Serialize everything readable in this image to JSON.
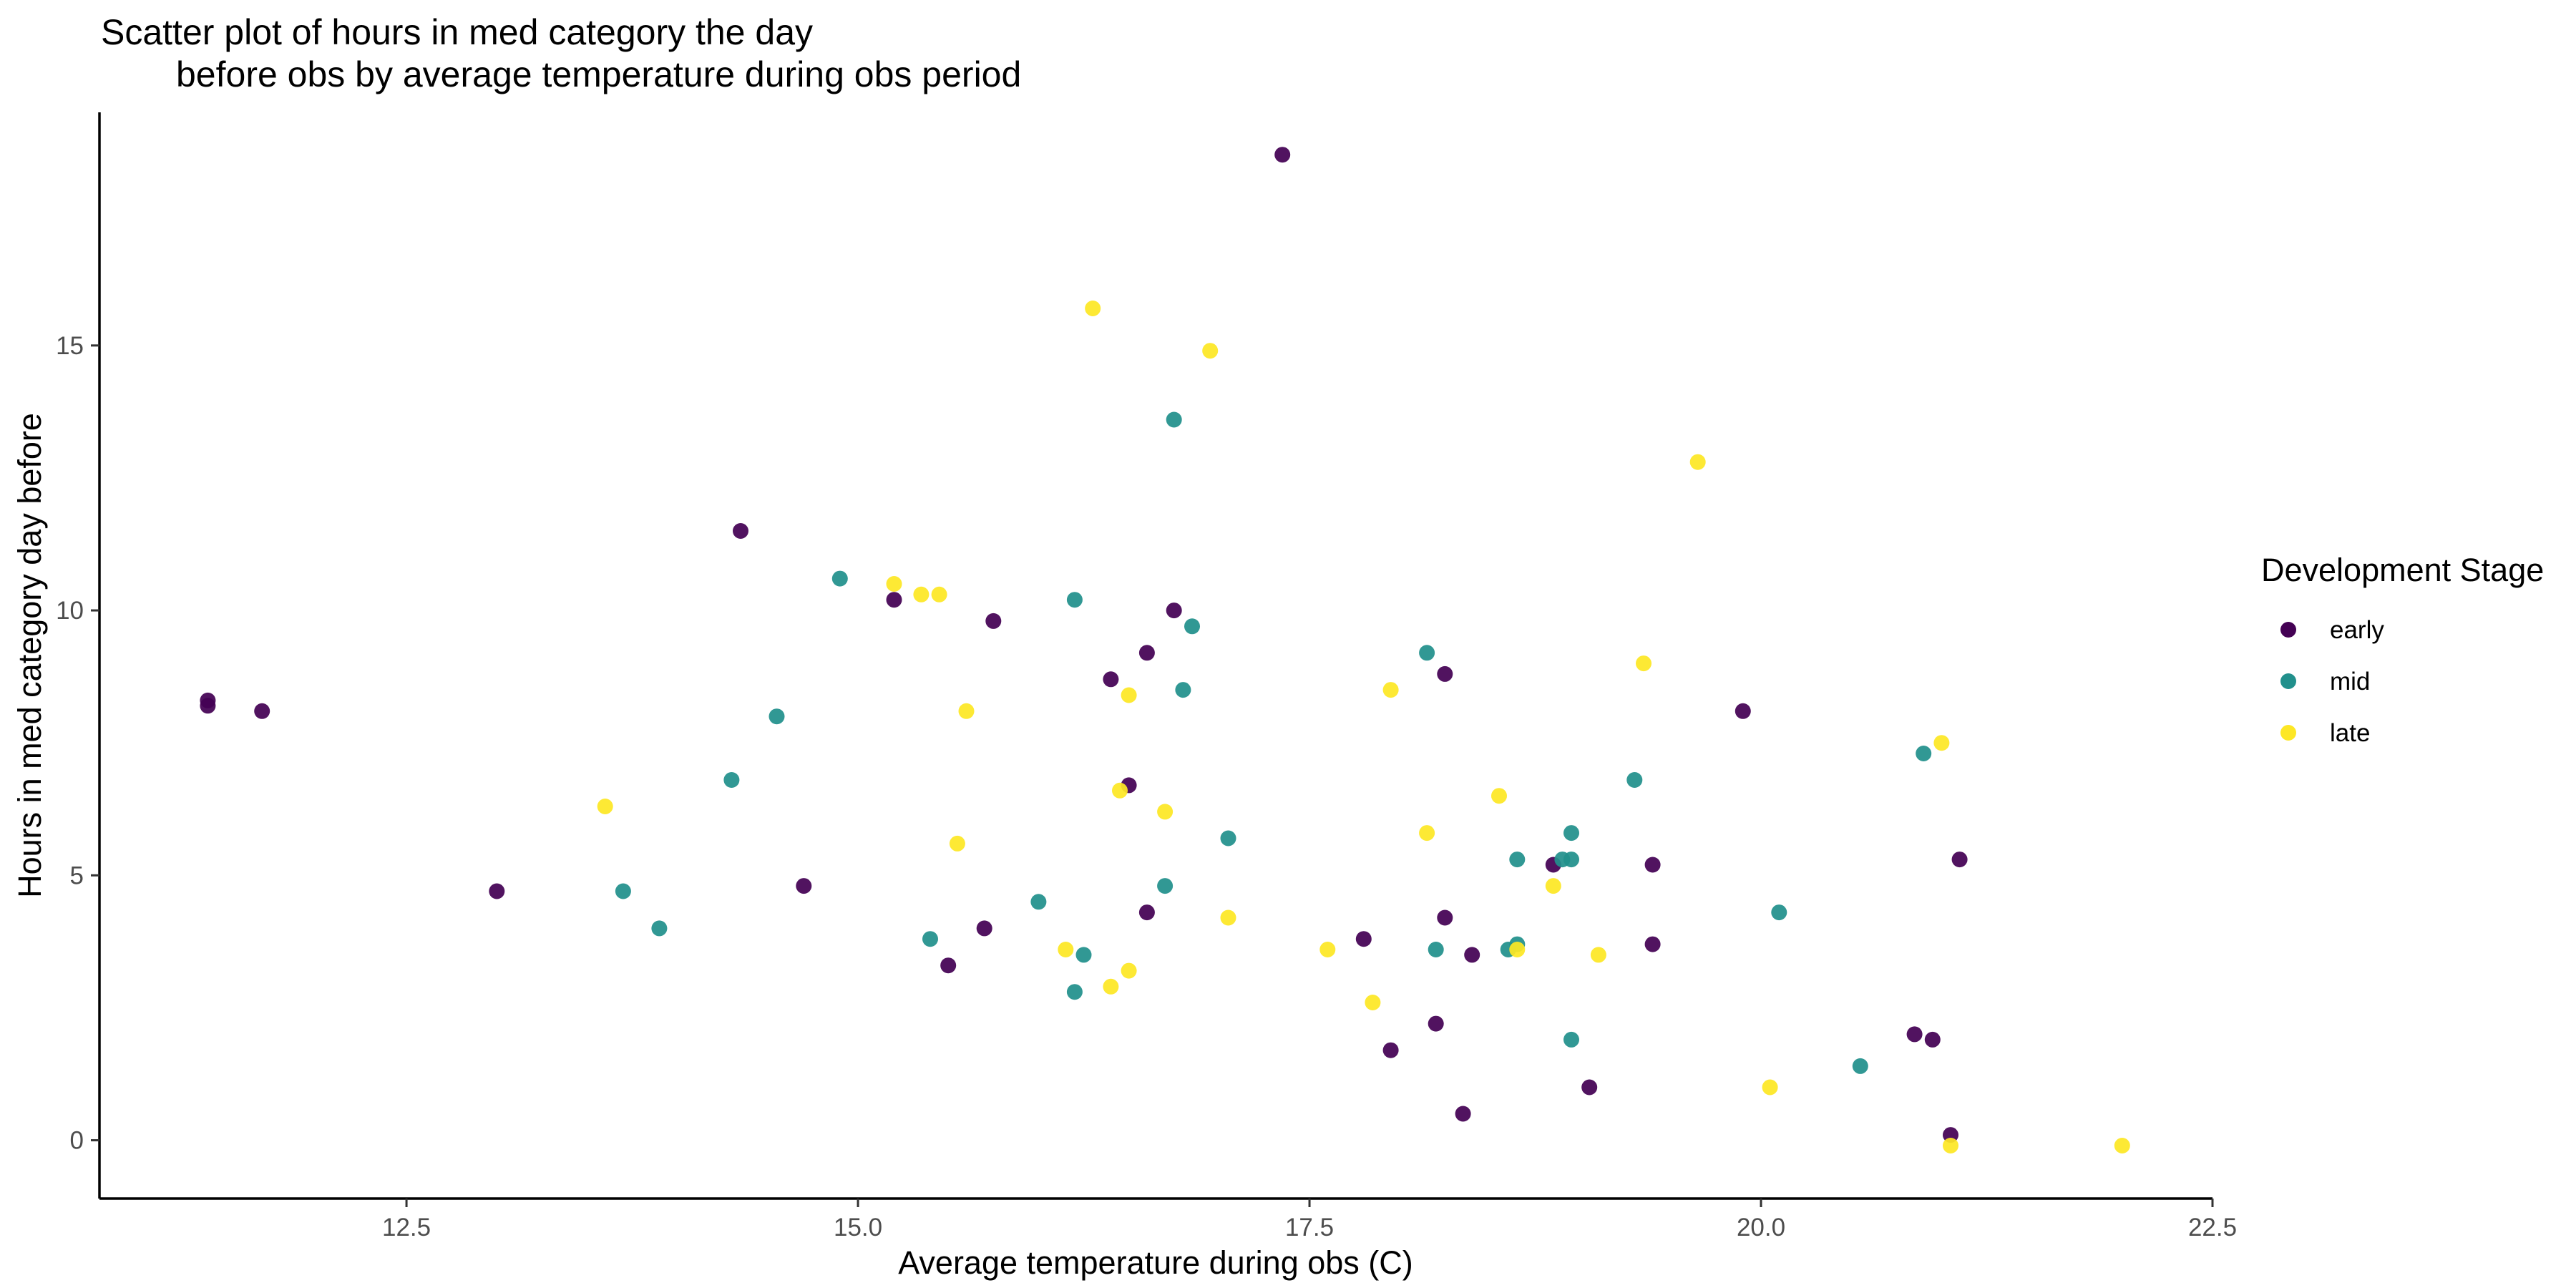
{
  "chart_data": {
    "type": "scatter",
    "title": [
      "Scatter plot of hours in med category the day",
      "before obs by average temperature during obs period"
    ],
    "xlabel": "Average temperature during obs (C)",
    "ylabel": "Hours in med category day before",
    "xlim": [
      10.8,
      22.5
    ],
    "ylim": [
      -1.1,
      19.4
    ],
    "x_ticks": [
      12.5,
      15.0,
      17.5,
      20.0,
      22.5
    ],
    "x_tick_labels": [
      "12.5",
      "15.0",
      "17.5",
      "20.0",
      "22.5"
    ],
    "y_ticks": [
      0,
      5,
      10,
      15
    ],
    "y_tick_labels": [
      "0",
      "5",
      "10",
      "15"
    ],
    "grid": false,
    "legend": {
      "title": "Development Stage",
      "position": "right"
    },
    "series": [
      {
        "name": "early",
        "color": "#440154",
        "points": [
          [
            11.4,
            8.3
          ],
          [
            11.4,
            8.2
          ],
          [
            11.7,
            8.1
          ],
          [
            13.0,
            4.7
          ],
          [
            14.35,
            11.5
          ],
          [
            14.7,
            4.8
          ],
          [
            15.2,
            10.2
          ],
          [
            15.5,
            3.3
          ],
          [
            15.7,
            4.0
          ],
          [
            15.75,
            9.8
          ],
          [
            16.4,
            8.7
          ],
          [
            16.5,
            6.7
          ],
          [
            16.6,
            9.2
          ],
          [
            16.6,
            4.3
          ],
          [
            16.75,
            10.0
          ],
          [
            17.35,
            18.6
          ],
          [
            17.8,
            3.8
          ],
          [
            17.95,
            1.7
          ],
          [
            18.2,
            2.2
          ],
          [
            18.25,
            8.8
          ],
          [
            18.25,
            4.2
          ],
          [
            18.35,
            0.5
          ],
          [
            18.4,
            3.5
          ],
          [
            18.85,
            5.2
          ],
          [
            19.05,
            1.0
          ],
          [
            19.4,
            5.2
          ],
          [
            19.4,
            3.7
          ],
          [
            19.9,
            8.1
          ],
          [
            20.85,
            2.0
          ],
          [
            20.95,
            1.9
          ],
          [
            21.05,
            0.1
          ],
          [
            21.1,
            5.3
          ]
        ]
      },
      {
        "name": "mid",
        "color": "#21908C",
        "points": [
          [
            13.7,
            4.7
          ],
          [
            13.9,
            4.0
          ],
          [
            14.3,
            6.8
          ],
          [
            14.55,
            8.0
          ],
          [
            14.9,
            10.6
          ],
          [
            15.4,
            3.8
          ],
          [
            16.0,
            4.5
          ],
          [
            16.2,
            10.2
          ],
          [
            16.2,
            2.8
          ],
          [
            16.25,
            3.5
          ],
          [
            16.7,
            4.8
          ],
          [
            16.75,
            13.6
          ],
          [
            16.8,
            8.5
          ],
          [
            16.85,
            9.7
          ],
          [
            17.05,
            5.7
          ],
          [
            18.15,
            9.2
          ],
          [
            18.2,
            3.6
          ],
          [
            18.6,
            3.6
          ],
          [
            18.65,
            5.3
          ],
          [
            18.65,
            3.7
          ],
          [
            18.9,
            5.3
          ],
          [
            18.95,
            5.8
          ],
          [
            18.95,
            5.3
          ],
          [
            18.95,
            1.9
          ],
          [
            19.3,
            6.8
          ],
          [
            20.1,
            4.3
          ],
          [
            20.55,
            1.4
          ],
          [
            20.9,
            7.3
          ]
        ]
      },
      {
        "name": "late",
        "color": "#FDE725",
        "points": [
          [
            13.6,
            6.3
          ],
          [
            15.2,
            10.5
          ],
          [
            15.35,
            10.3
          ],
          [
            15.45,
            10.3
          ],
          [
            15.55,
            5.6
          ],
          [
            15.6,
            8.1
          ],
          [
            16.15,
            3.6
          ],
          [
            16.3,
            15.7
          ],
          [
            16.4,
            2.9
          ],
          [
            16.45,
            6.6
          ],
          [
            16.5,
            3.2
          ],
          [
            16.5,
            8.4
          ],
          [
            16.7,
            6.2
          ],
          [
            16.95,
            14.9
          ],
          [
            17.05,
            4.2
          ],
          [
            17.6,
            3.6
          ],
          [
            17.85,
            2.6
          ],
          [
            17.95,
            8.5
          ],
          [
            18.15,
            5.8
          ],
          [
            18.55,
            6.5
          ],
          [
            18.65,
            3.6
          ],
          [
            18.85,
            4.8
          ],
          [
            19.1,
            3.5
          ],
          [
            19.35,
            9.0
          ],
          [
            19.65,
            12.8
          ],
          [
            20.05,
            1.0
          ],
          [
            21.0,
            7.5
          ],
          [
            21.05,
            -0.1
          ],
          [
            22.0,
            -0.1
          ]
        ]
      }
    ]
  }
}
